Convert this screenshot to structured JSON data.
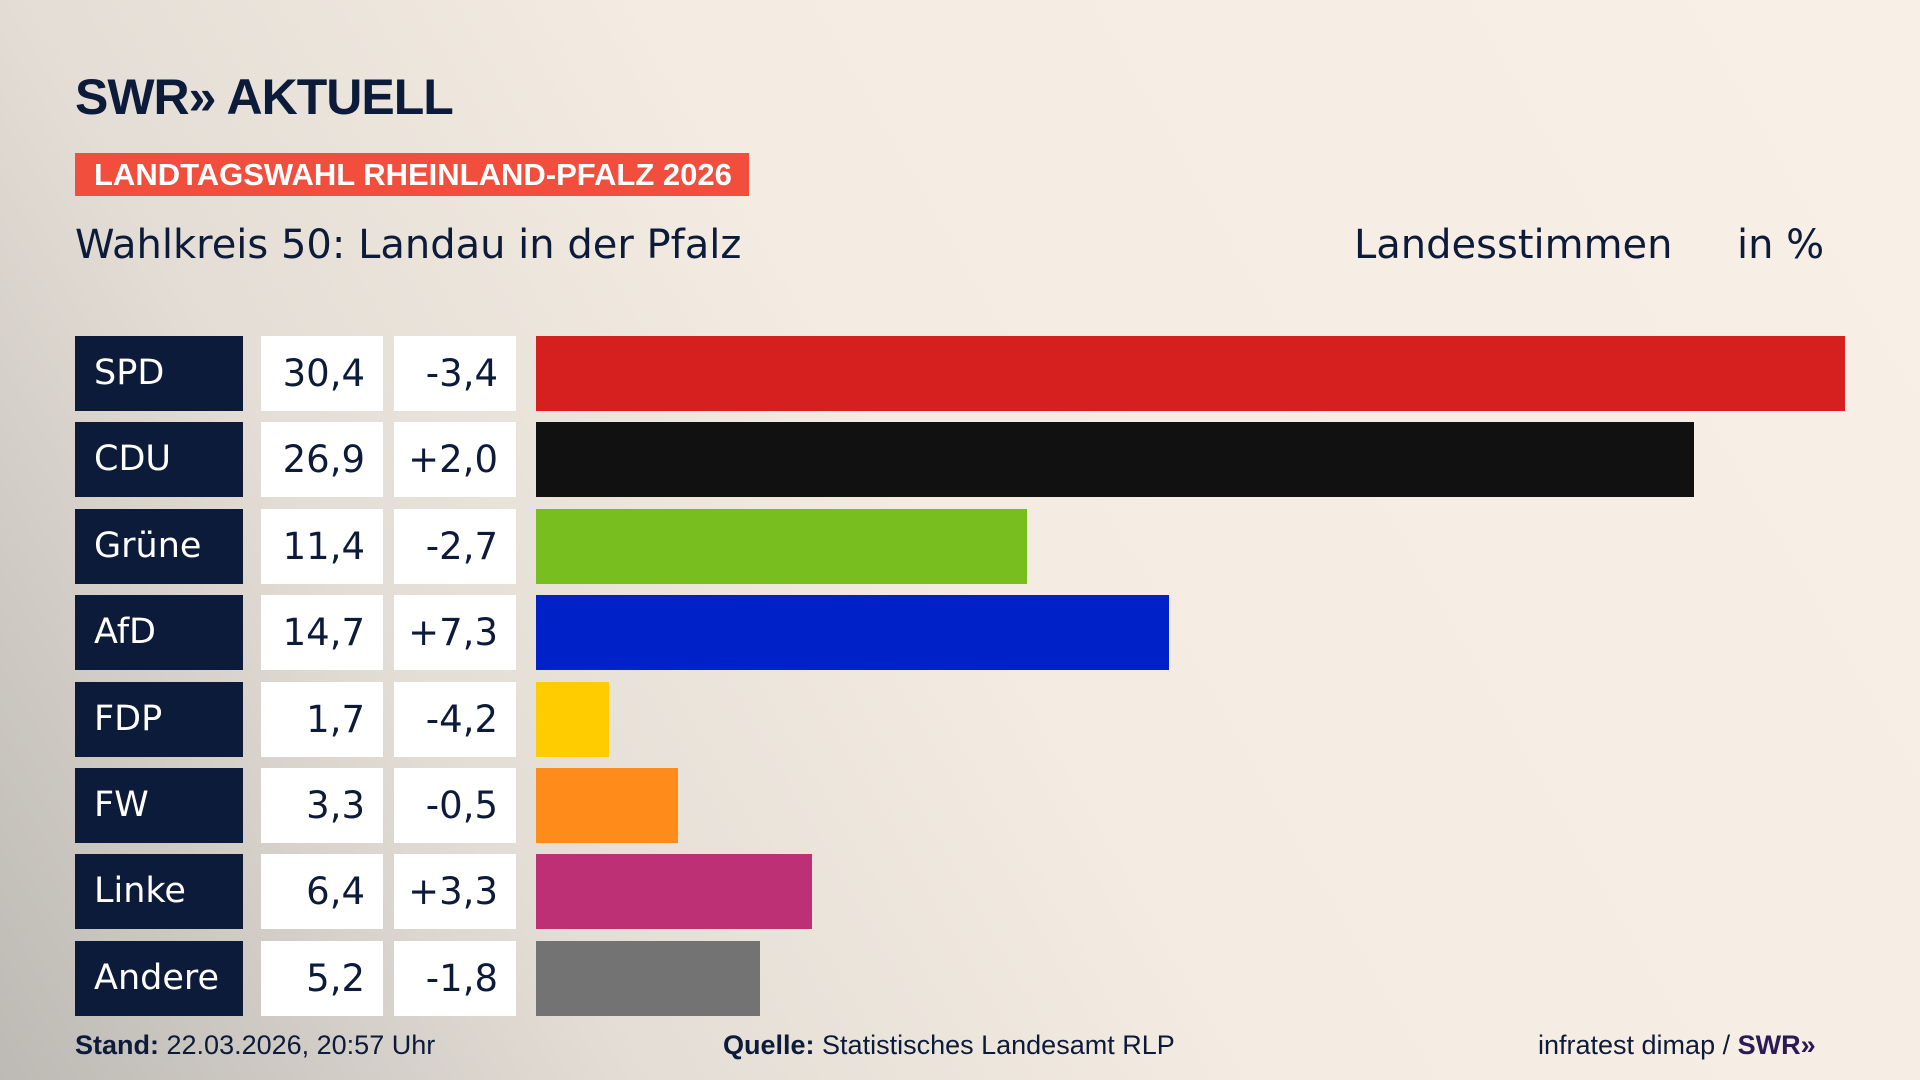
{
  "header": {
    "logo": "SWR» AKTUELL",
    "banner": "LANDTAGSWAHL RHEINLAND-PFALZ 2026",
    "subtitle": "Wahlkreis 50: Landau in der Pfalz",
    "metric": "Landesstimmen",
    "unit": "in %"
  },
  "chart_data": {
    "type": "bar",
    "orientation": "horizontal",
    "categories": [
      "SPD",
      "CDU",
      "Grüne",
      "AfD",
      "FDP",
      "FW",
      "Linke",
      "Andere"
    ],
    "values": [
      30.4,
      26.9,
      11.4,
      14.7,
      1.7,
      3.3,
      6.4,
      5.2
    ],
    "value_labels": [
      "30,4",
      "26,9",
      "11,4",
      "14,7",
      "1,7",
      "3,3",
      "6,4",
      "5,2"
    ],
    "change_labels": [
      "-3,4",
      "+2,0",
      "-2,7",
      "+7,3",
      "-4,2",
      "-0,5",
      "+3,3",
      "-1,8"
    ],
    "changes": [
      -3.4,
      2.0,
      -2.7,
      7.3,
      -4.2,
      -0.5,
      3.3,
      -1.8
    ],
    "colors": [
      "#d62020",
      "#111111",
      "#78be1e",
      "#0021c8",
      "#ffcc00",
      "#ff8c1a",
      "#bd3075",
      "#737373"
    ],
    "xlim": [
      0,
      30.4
    ],
    "grid": false
  },
  "footer": {
    "stand_label": "Stand:",
    "stand_value": "22.03.2026, 20:57 Uhr",
    "source_label": "Quelle:",
    "source_value": "Statistisches Landesamt RLP",
    "credit": "infratest dimap /",
    "credit_logo": "SWR»"
  }
}
